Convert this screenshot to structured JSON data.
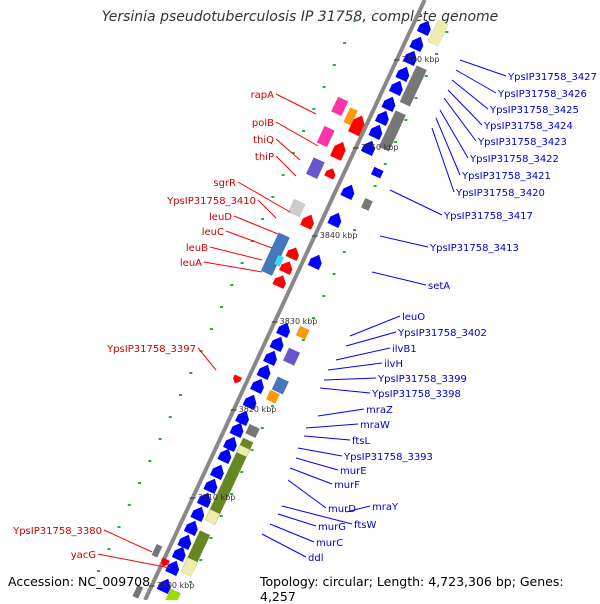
{
  "title": "Yersinia pseudotuberculosis IP 31758, complete genome",
  "footer": {
    "accession": "Accession: NC_009708",
    "summary": "Topology: circular; Length: 4,723,306 bp; Genes: 4,257"
  },
  "colors": {
    "forward_label": "#cc0000",
    "reverse_label": "#0000cc",
    "backbone": "#888888",
    "tick_dot": "#33aa33",
    "gene_red": "#ff0000",
    "gene_blue": "#0000ff",
    "magenta": "#ff33aa",
    "orange": "#ff9900",
    "purple": "#6655cc",
    "steelblue": "#4477bb",
    "cyan": "#33ddff",
    "lightgray": "#cccccc",
    "darkgray": "#777777",
    "olive": "#668822",
    "beige": "#eeeeaa",
    "lime": "#99dd00"
  },
  "scale": {
    "ticks": [
      {
        "label": "3860 kbp"
      },
      {
        "label": "3850 kbp"
      },
      {
        "label": "3840 kbp"
      },
      {
        "label": "3830 kbp"
      },
      {
        "label": "3820 kbp"
      },
      {
        "label": "3810 kbp"
      },
      {
        "label": "3800 kbp"
      }
    ]
  },
  "forward_genes": [
    "rapA",
    "polB",
    "thiQ",
    "thiP",
    "sgrR",
    "YpsIP31758_3410",
    "leuD",
    "leuC",
    "leuB",
    "leuA",
    "YpsIP31758_3397",
    "YpsIP31758_3380",
    "yacG"
  ],
  "reverse_genes": [
    "YpsIP31758_3427",
    "YpsIP31758_3426",
    "YpsIP31758_3425",
    "YpsIP31758_3424",
    "YpsIP31758_3423",
    "YpsIP31758_3422",
    "YpsIP31758_3421",
    "YpsIP31758_3420",
    "YpsIP31758_3417",
    "YpsIP31758_3413",
    "setA",
    "leuO",
    "YpsIP31758_3402",
    "ilvB1",
    "ilvH",
    "YpsIP31758_3399",
    "YpsIP31758_3398",
    "mraZ",
    "mraW",
    "ftsL",
    "YpsIP31758_3393",
    "murE",
    "murF",
    "murD",
    "mraY",
    "ftsW",
    "murG",
    "murC",
    "ddl"
  ]
}
